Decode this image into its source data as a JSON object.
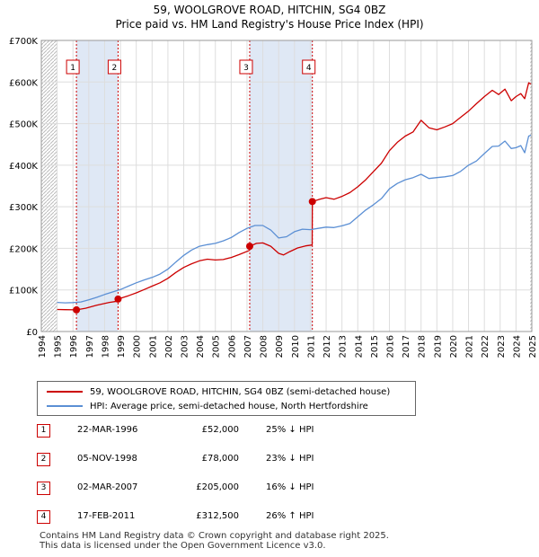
{
  "title_line1": "59, WOOLGROVE ROAD, HITCHIN, SG4 0BZ",
  "title_line2": "Price paid vs. HM Land Registry's House Price Index (HPI)",
  "colors": {
    "property": "#cc0000",
    "hpi": "#5b8fd4",
    "band": "#dfe8f5",
    "grid": "#dddddd",
    "hatch": "#bbbbbb"
  },
  "legend": {
    "property_label": "59, WOOLGROVE ROAD, HITCHIN, SG4 0BZ (semi-detached house)",
    "hpi_label": "HPI: Average price, semi-detached house, North Hertfordshire"
  },
  "sales": [
    {
      "num": "1",
      "date": "22-MAR-1996",
      "price": "£52,000",
      "hpi": "25% ↓ HPI"
    },
    {
      "num": "2",
      "date": "05-NOV-1998",
      "price": "£78,000",
      "hpi": "23% ↓ HPI"
    },
    {
      "num": "3",
      "date": "02-MAR-2007",
      "price": "£205,000",
      "hpi": "16% ↓ HPI"
    },
    {
      "num": "4",
      "date": "17-FEB-2011",
      "price": "£312,500",
      "hpi": "26% ↑ HPI"
    }
  ],
  "footer": {
    "line1": "Contains HM Land Registry data © Crown copyright and database right 2025.",
    "line2": "This data is licensed under the Open Government Licence v3.0."
  },
  "chart_data": {
    "type": "line",
    "title": "59, WOOLGROVE ROAD, HITCHIN, SG4 0BZ — Price paid vs. HM Land Registry's House Price Index (HPI)",
    "xlabel": "",
    "ylabel": "",
    "xlim": [
      1994,
      2025
    ],
    "ylim": [
      0,
      700000
    ],
    "x_ticks": [
      1994,
      1995,
      1996,
      1997,
      1998,
      1999,
      2000,
      2001,
      2002,
      2003,
      2004,
      2005,
      2006,
      2007,
      2008,
      2009,
      2010,
      2011,
      2012,
      2013,
      2014,
      2015,
      2016,
      2017,
      2018,
      2019,
      2020,
      2021,
      2022,
      2023,
      2024,
      2025
    ],
    "y_ticks": [
      0,
      100000,
      200000,
      300000,
      400000,
      500000,
      600000,
      700000
    ],
    "y_tick_labels": [
      "£0",
      "£100K",
      "£200K",
      "£300K",
      "£400K",
      "£500K",
      "£600K",
      "£700K"
    ],
    "shaded_periods": [
      [
        1996.22,
        1998.85
      ],
      [
        2007.17,
        2011.13
      ]
    ],
    "hatched_ranges": [
      [
        1994,
        1995
      ],
      [
        2024.9,
        2025
      ]
    ],
    "sale_markers": [
      {
        "label": "1",
        "x": 1996.22,
        "y": 52000
      },
      {
        "label": "2",
        "x": 1998.85,
        "y": 78000
      },
      {
        "label": "3",
        "x": 2007.17,
        "y": 205000
      },
      {
        "label": "4",
        "x": 2011.13,
        "y": 312500
      }
    ],
    "series": [
      {
        "name": "59, WOOLGROVE ROAD, HITCHIN, SG4 0BZ (semi-detached house)",
        "color": "#cc0000",
        "points": [
          [
            1995.0,
            53000
          ],
          [
            1995.5,
            52500
          ],
          [
            1996.22,
            52000
          ],
          [
            1996.8,
            56000
          ],
          [
            1997.5,
            63000
          ],
          [
            1998.3,
            70000
          ],
          [
            1998.84,
            73000
          ],
          [
            1998.85,
            78000
          ],
          [
            1999.5,
            86000
          ],
          [
            2000.0,
            93000
          ],
          [
            2000.5,
            101000
          ],
          [
            2001.0,
            109000
          ],
          [
            2001.5,
            117000
          ],
          [
            2002.0,
            128000
          ],
          [
            2002.5,
            142000
          ],
          [
            2003.0,
            154000
          ],
          [
            2003.5,
            163000
          ],
          [
            2004.0,
            170000
          ],
          [
            2004.5,
            174000
          ],
          [
            2005.0,
            172000
          ],
          [
            2005.5,
            173000
          ],
          [
            2006.0,
            178000
          ],
          [
            2006.5,
            185000
          ],
          [
            2007.16,
            195000
          ],
          [
            2007.17,
            205000
          ],
          [
            2007.6,
            212000
          ],
          [
            2008.0,
            213000
          ],
          [
            2008.5,
            205000
          ],
          [
            2009.0,
            188000
          ],
          [
            2009.3,
            184000
          ],
          [
            2009.7,
            192000
          ],
          [
            2010.2,
            201000
          ],
          [
            2010.7,
            206000
          ],
          [
            2011.12,
            208000
          ],
          [
            2011.13,
            312500
          ],
          [
            2011.6,
            318000
          ],
          [
            2012.0,
            322000
          ],
          [
            2012.5,
            318000
          ],
          [
            2013.0,
            325000
          ],
          [
            2013.5,
            334000
          ],
          [
            2014.0,
            348000
          ],
          [
            2014.5,
            365000
          ],
          [
            2015.0,
            385000
          ],
          [
            2015.5,
            405000
          ],
          [
            2016.0,
            435000
          ],
          [
            2016.5,
            455000
          ],
          [
            2017.0,
            470000
          ],
          [
            2017.5,
            480000
          ],
          [
            2018.0,
            508000
          ],
          [
            2018.5,
            490000
          ],
          [
            2019.0,
            485000
          ],
          [
            2019.5,
            492000
          ],
          [
            2020.0,
            500000
          ],
          [
            2020.5,
            515000
          ],
          [
            2021.0,
            530000
          ],
          [
            2021.5,
            548000
          ],
          [
            2022.0,
            565000
          ],
          [
            2022.5,
            580000
          ],
          [
            2022.9,
            570000
          ],
          [
            2023.3,
            583000
          ],
          [
            2023.7,
            555000
          ],
          [
            2024.0,
            565000
          ],
          [
            2024.3,
            572000
          ],
          [
            2024.55,
            560000
          ],
          [
            2024.8,
            598000
          ],
          [
            2024.95,
            595000
          ]
        ]
      },
      {
        "name": "HPI: Average price, semi-detached house, North Hertfordshire",
        "color": "#5b8fd4",
        "points": [
          [
            1995.0,
            70000
          ],
          [
            1995.5,
            69000
          ],
          [
            1996.0,
            69500
          ],
          [
            1996.5,
            71000
          ],
          [
            1997.0,
            76000
          ],
          [
            1997.5,
            82000
          ],
          [
            1998.0,
            89000
          ],
          [
            1998.5,
            95000
          ],
          [
            1999.0,
            101000
          ],
          [
            1999.5,
            109000
          ],
          [
            2000.0,
            117000
          ],
          [
            2000.5,
            124000
          ],
          [
            2001.0,
            130000
          ],
          [
            2001.5,
            138000
          ],
          [
            2002.0,
            150000
          ],
          [
            2002.5,
            167000
          ],
          [
            2003.0,
            183000
          ],
          [
            2003.5,
            196000
          ],
          [
            2004.0,
            205000
          ],
          [
            2004.5,
            209000
          ],
          [
            2005.0,
            212000
          ],
          [
            2005.5,
            218000
          ],
          [
            2006.0,
            226000
          ],
          [
            2006.5,
            238000
          ],
          [
            2007.0,
            248000
          ],
          [
            2007.5,
            255000
          ],
          [
            2008.0,
            255000
          ],
          [
            2008.5,
            244000
          ],
          [
            2009.0,
            225000
          ],
          [
            2009.5,
            228000
          ],
          [
            2010.0,
            240000
          ],
          [
            2010.5,
            246000
          ],
          [
            2011.0,
            245000
          ],
          [
            2011.5,
            248000
          ],
          [
            2012.0,
            251000
          ],
          [
            2012.5,
            250000
          ],
          [
            2013.0,
            254000
          ],
          [
            2013.5,
            260000
          ],
          [
            2014.0,
            276000
          ],
          [
            2014.5,
            292000
          ],
          [
            2015.0,
            305000
          ],
          [
            2015.5,
            320000
          ],
          [
            2016.0,
            343000
          ],
          [
            2016.5,
            356000
          ],
          [
            2017.0,
            365000
          ],
          [
            2017.5,
            370000
          ],
          [
            2018.0,
            378000
          ],
          [
            2018.5,
            368000
          ],
          [
            2019.0,
            370000
          ],
          [
            2019.5,
            372000
          ],
          [
            2020.0,
            375000
          ],
          [
            2020.5,
            385000
          ],
          [
            2021.0,
            400000
          ],
          [
            2021.5,
            410000
          ],
          [
            2022.0,
            428000
          ],
          [
            2022.5,
            445000
          ],
          [
            2022.9,
            446000
          ],
          [
            2023.3,
            458000
          ],
          [
            2023.7,
            440000
          ],
          [
            2024.0,
            442000
          ],
          [
            2024.3,
            447000
          ],
          [
            2024.55,
            430000
          ],
          [
            2024.8,
            470000
          ],
          [
            2024.95,
            472000
          ]
        ]
      }
    ]
  }
}
